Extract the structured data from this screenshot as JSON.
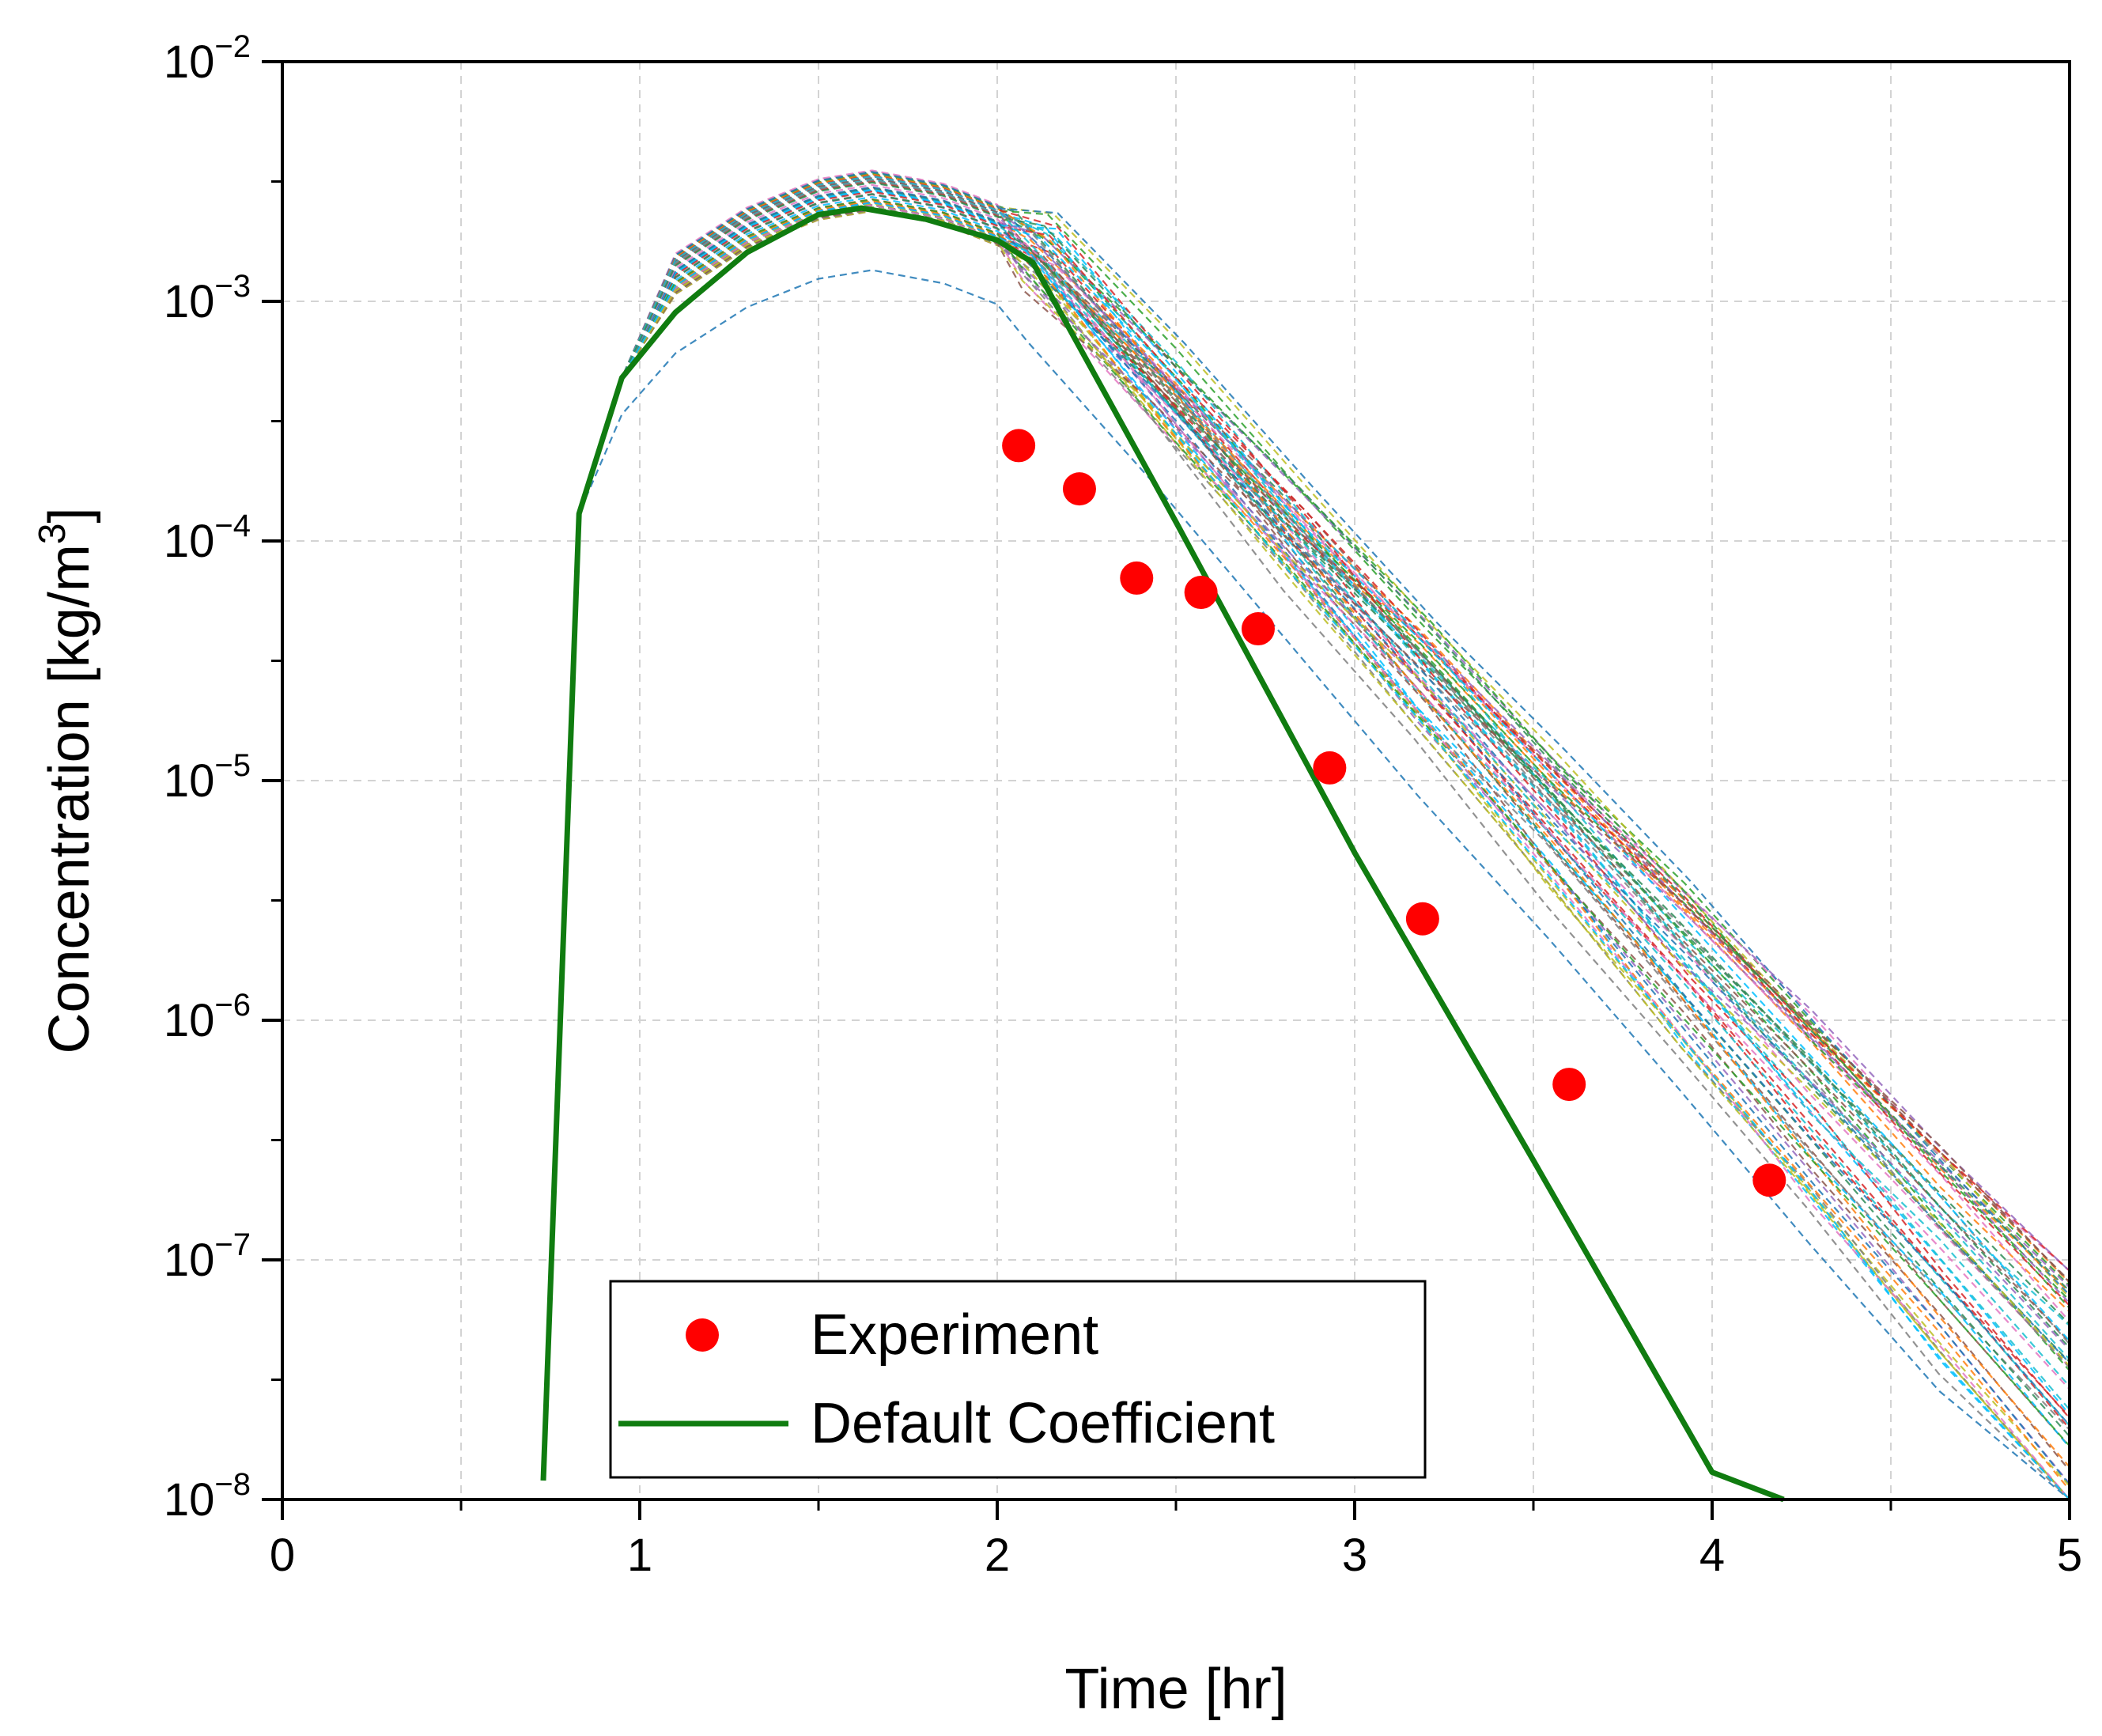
{
  "chart_data": {
    "type": "line",
    "xlabel": "Time [hr]",
    "ylabel": "Concentration [kg/m",
    "ylabel_sup": "3",
    "ylabel_close": "]",
    "xlim": [
      0,
      5
    ],
    "ylim_log10": [
      -8,
      -2
    ],
    "yscale": "log",
    "grid": true,
    "x_ticks": [
      {
        "value": 0,
        "label": "0"
      },
      {
        "value": 1,
        "label": "1"
      },
      {
        "value": 2,
        "label": "2"
      },
      {
        "value": 3,
        "label": "3"
      },
      {
        "value": 4,
        "label": "4"
      },
      {
        "value": 5,
        "label": "5"
      }
    ],
    "y_ticks": [
      {
        "exp": -2,
        "base": "10",
        "sup": "−2"
      },
      {
        "exp": -3,
        "base": "10",
        "sup": "−3"
      },
      {
        "exp": -4,
        "base": "10",
        "sup": "−4"
      },
      {
        "exp": -5,
        "base": "10",
        "sup": "−5"
      },
      {
        "exp": -6,
        "base": "10",
        "sup": "−6"
      },
      {
        "exp": -7,
        "base": "10",
        "sup": "−7"
      },
      {
        "exp": -8,
        "base": "10",
        "sup": "−8"
      }
    ],
    "legend": {
      "position": "bottom-center",
      "entries": [
        {
          "label": "Experiment",
          "marker": "circle",
          "color": "#ff0000"
        },
        {
          "label": "Default Coefficient",
          "marker": "line",
          "color": "#107c10"
        }
      ]
    },
    "series": [
      {
        "name": "Experiment",
        "style": "scatter",
        "color": "#ff0000",
        "points": [
          {
            "x": 2.06,
            "y": 0.00025
          },
          {
            "x": 2.23,
            "y": 0.000165
          },
          {
            "x": 2.39,
            "y": 7e-05
          },
          {
            "x": 2.57,
            "y": 6.1e-05
          },
          {
            "x": 2.73,
            "y": 4.3e-05
          },
          {
            "x": 2.93,
            "y": 1.13e-05
          },
          {
            "x": 3.19,
            "y": 2.65e-06
          },
          {
            "x": 3.6,
            "y": 5.4e-07
          },
          {
            "x": 4.16,
            "y": 2.15e-07
          }
        ]
      },
      {
        "name": "Default Coefficient",
        "style": "line",
        "color": "#107c10",
        "points": [
          {
            "x": 0.73,
            "y": 1.2e-08
          },
          {
            "x": 0.83,
            "y": 0.00013
          },
          {
            "x": 0.95,
            "y": 0.00048
          },
          {
            "x": 1.1,
            "y": 0.0009
          },
          {
            "x": 1.3,
            "y": 0.0016
          },
          {
            "x": 1.5,
            "y": 0.0023
          },
          {
            "x": 1.62,
            "y": 0.00245
          },
          {
            "x": 1.8,
            "y": 0.0022
          },
          {
            "x": 2.0,
            "y": 0.0018
          },
          {
            "x": 2.1,
            "y": 0.00145
          },
          {
            "x": 2.5,
            "y": 0.00012
          },
          {
            "x": 3.0,
            "y": 5e-06
          },
          {
            "x": 3.5,
            "y": 2.6e-07
          },
          {
            "x": 4.0,
            "y": 1.3e-08
          },
          {
            "x": 4.2,
            "y": 1e-08
          }
        ]
      },
      {
        "name": "Sensitivity ensemble",
        "style": "dashed-lines",
        "count": 60,
        "palette": [
          "#1f77b4",
          "#ff7f0e",
          "#2ca02c",
          "#d62728",
          "#9467bd",
          "#8c564b",
          "#e377c2",
          "#7f7f7f",
          "#bcbd22",
          "#17becf",
          "#2e8b57",
          "#00bfff"
        ],
        "peak_range": [
          0.0014,
          0.0036
        ],
        "value_at_x5_range": [
          1e-08,
          1e-07
        ]
      }
    ]
  }
}
